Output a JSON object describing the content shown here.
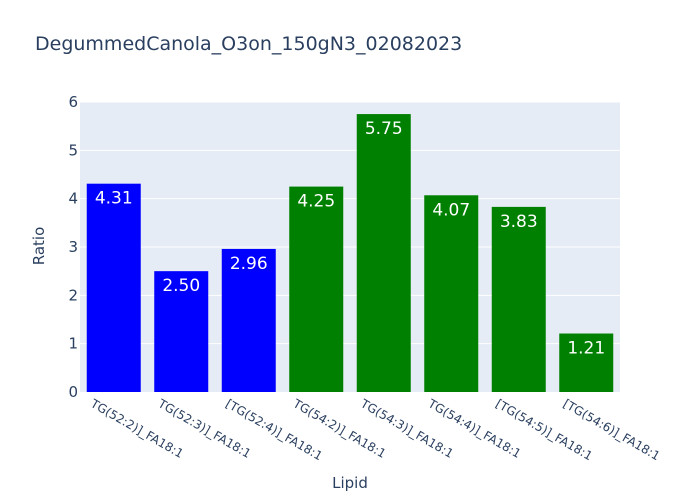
{
  "chart_data": {
    "type": "bar",
    "title": "DegummedCanola_O3on_150gN3_02082023",
    "xlabel": "Lipid",
    "ylabel": "Ratio",
    "ylim": [
      0,
      6
    ],
    "yticks": [
      0,
      1,
      2,
      3,
      4,
      5,
      6
    ],
    "grid": true,
    "categories": [
      "TG(52:2)]_FA18:1",
      "TG(52:3)]_FA18:1",
      "[TG(52:4)]_FA18:1",
      "TG(54:2)]_FA18:1",
      "TG(54:3)]_FA18:1",
      "TG(54:4)]_FA18:1",
      "[TG(54:5)]_FA18:1",
      "[TG(54:6)]_FA18:1"
    ],
    "values": [
      4.31,
      2.5,
      2.96,
      4.25,
      5.75,
      4.07,
      3.83,
      1.21
    ],
    "value_labels": [
      "4.31",
      "2.50",
      "2.96",
      "4.25",
      "5.75",
      "4.07",
      "3.83",
      "1.21"
    ],
    "bar_colors": [
      "#0000ff",
      "#0000ff",
      "#0000ff",
      "#008000",
      "#008000",
      "#008000",
      "#008000",
      "#008000"
    ],
    "plot_background": "#e5ecf6",
    "text_color": "#2a3f5f"
  }
}
